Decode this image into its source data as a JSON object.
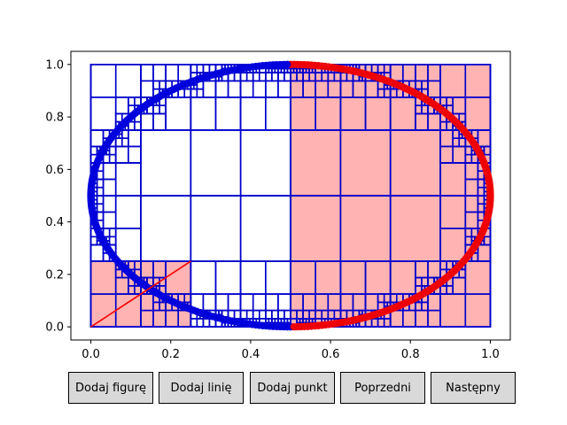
{
  "chart_data": {
    "type": "scatter",
    "title": "",
    "xlabel": "",
    "ylabel": "",
    "xlim": [
      -0.05,
      1.05
    ],
    "ylim": [
      -0.05,
      1.05
    ],
    "xticks": [
      "0.0",
      "0.2",
      "0.4",
      "0.6",
      "0.8",
      "1.0"
    ],
    "yticks": [
      "0.0",
      "0.2",
      "0.4",
      "0.6",
      "0.8",
      "1.0"
    ],
    "grid": false,
    "ellipse": {
      "cx": 0.5,
      "cy": 0.5,
      "rx": 0.5,
      "ry": 0.5,
      "points": 360
    },
    "line_segment": {
      "x": [
        0.0,
        0.25
      ],
      "y": [
        0.0,
        0.25
      ],
      "color": "#ff0000"
    },
    "highlighted_cells": [
      [
        0.5,
        0.0,
        1.0,
        1.0
      ],
      [
        0.0,
        0.0,
        0.25,
        0.25
      ]
    ],
    "quadtree_outer_cells": [
      [
        0.0,
        0.0,
        0.5,
        1.0
      ],
      [
        0.5,
        0.0,
        1.0,
        1.0
      ]
    ],
    "colors": {
      "highlight_fill": "#ffb3b3",
      "cell_stroke": "#0000cc",
      "point_blue": "#0000dd",
      "point_red": "#ee0000",
      "axis": "#000000"
    }
  },
  "buttons": [
    {
      "label": "Dodaj figurę"
    },
    {
      "label": "Dodaj linię"
    },
    {
      "label": "Dodaj punkt"
    },
    {
      "label": "Poprzedni"
    },
    {
      "label": "Następny"
    }
  ]
}
